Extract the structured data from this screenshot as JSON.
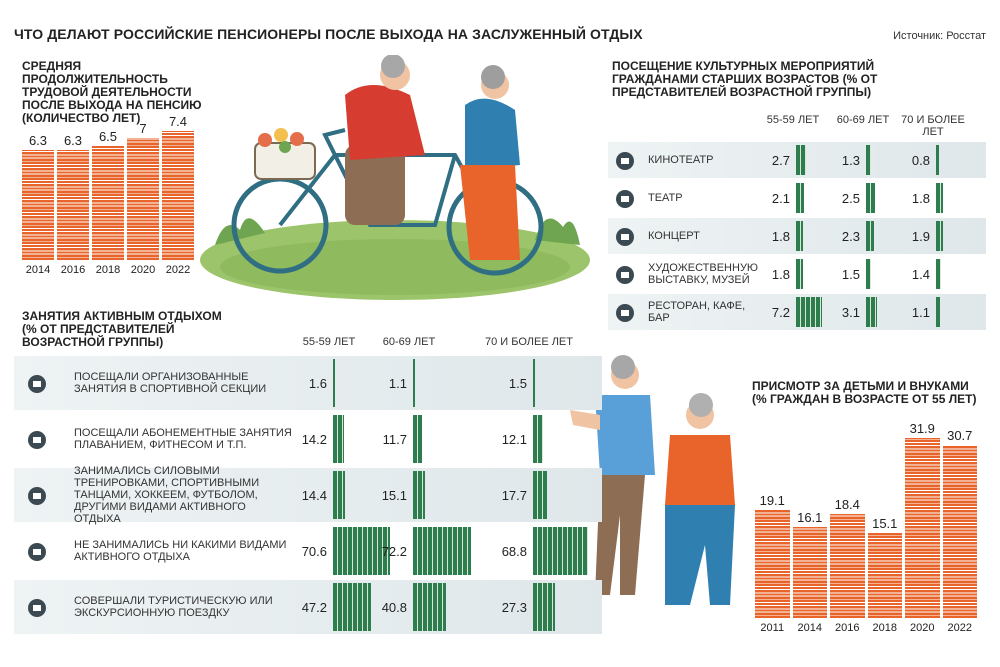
{
  "title": "ЧТО ДЕЛАЮТ РОССИЙСКИЕ ПЕНСИОНЕРЫ ПОСЛЕ ВЫХОДА НА ЗАСЛУЖЕННЫЙ ОТДЫХ",
  "source": "Источник: Росстат",
  "colors": {
    "orange": "#e8642a",
    "green": "#2e7d4f",
    "band": "#e4ecee"
  },
  "chart_data": [
    {
      "type": "bar",
      "title": "СРЕДНЯЯ ПРОДОЛЖИТЕЛЬНОСТЬ ТРУДОВОЙ ДЕЯТЕЛЬНОСТИ ПОСЛЕ ВЫХОДА НА ПЕНСИЮ (КОЛИЧЕСТВО ЛЕТ)",
      "categories": [
        "2014",
        "2016",
        "2018",
        "2020",
        "2022"
      ],
      "values": [
        6.3,
        6.3,
        6.5,
        7,
        7.4
      ],
      "value_labels": [
        "6.3",
        "6.3",
        "6.5",
        "7",
        "7.4"
      ]
    },
    {
      "type": "table",
      "title": "ПОСЕЩЕНИЕ КУЛЬТУРНЫХ МЕРОПРИЯТИЙ ГРАЖДАНАМИ СТАРШИХ ВОЗРАСТОВ (% ОТ ПРЕДСТАВИТЕЛЕЙ ВОЗРАСТНОЙ ГРУППЫ)",
      "columns": [
        "55-59 ЛЕТ",
        "60-69 ЛЕТ",
        "70 И БОЛЕЕ ЛЕТ"
      ],
      "rows": [
        {
          "label": "КИНОТЕАТР",
          "icon": "camera-icon",
          "values": [
            2.7,
            1.3,
            0.8
          ],
          "labels": [
            "2.7",
            "1.3",
            "0.8"
          ]
        },
        {
          "label": "ТЕАТР",
          "icon": "theatre-masks-icon",
          "values": [
            2.1,
            2.5,
            1.8
          ],
          "labels": [
            "2.1",
            "2.5",
            "1.8"
          ]
        },
        {
          "label": "КОНЦЕРТ",
          "icon": "microphone-icon",
          "values": [
            1.8,
            2.3,
            1.9
          ],
          "labels": [
            "1.8",
            "2.3",
            "1.9"
          ]
        },
        {
          "label": "ХУДОЖЕСТВЕННУЮ ВЫСТАВКУ, МУЗЕЙ",
          "icon": "museum-icon",
          "values": [
            1.8,
            1.5,
            1.4
          ],
          "labels": [
            "1.8",
            "1.5",
            "1.4"
          ]
        },
        {
          "label": "РЕСТОРАН, КАФЕ, БАР",
          "icon": "coffee-cup-icon",
          "values": [
            7.2,
            3.1,
            1.1
          ],
          "labels": [
            "7.2",
            "3.1",
            "1.1"
          ]
        }
      ]
    },
    {
      "type": "table",
      "title": "ЗАНЯТИЯ АКТИВНЫМ ОТДЫХОМ (% ОТ ПРЕДСТАВИТЕЛЕЙ ВОЗРАСТНОЙ ГРУППЫ)",
      "columns": [
        "55-59 ЛЕТ",
        "60-69 ЛЕТ",
        "70 И БОЛЕЕ ЛЕТ"
      ],
      "rows": [
        {
          "label": "ПОСЕЩАЛИ ОРГАНИЗОВАННЫЕ ЗАНЯТИЯ В СПОРТИВНОЙ СЕКЦИИ",
          "icon": "sport-section-icon",
          "values": [
            1.6,
            1.1,
            1.5
          ],
          "labels": [
            "1.6",
            "1.1",
            "1.5"
          ]
        },
        {
          "label": "ПОСЕЩАЛИ АБОНЕМЕНТНЫЕ ЗАНЯТИЯ ПЛАВАНИЕМ, ФИТНЕСОМ И Т.П.",
          "icon": "exercise-bike-icon",
          "values": [
            14.2,
            11.7,
            12.1
          ],
          "labels": [
            "14.2",
            "11.7",
            "12.1"
          ]
        },
        {
          "label": "ЗАНИМАЛИСЬ СИЛОВЫМИ ТРЕНИРОВКАМИ, СПОРТИВНЫМИ ТАНЦАМИ, ХОККЕЕМ, ФУТБОЛОМ, ДРУГИМИ ВИДАМИ АКТИВНОГО ОТДЫХА",
          "icon": "football-player-icon",
          "values": [
            14.4,
            15.1,
            17.7
          ],
          "labels": [
            "14.4",
            "15.1",
            "17.7"
          ]
        },
        {
          "label": "НЕ ЗАНИМАЛИСЬ НИ КАКИМИ ВИДАМИ АКТИВНОГО ОТДЫХА",
          "icon": "armchair-icon",
          "values": [
            70.6,
            72.2,
            68.8
          ],
          "labels": [
            "70.6",
            "72.2",
            "68.8"
          ]
        },
        {
          "label": "СОВЕРШАЛИ ТУРИСТИЧЕСКУЮ ИЛИ ЭКСКУРСИОННУЮ ПОЕЗДКУ",
          "icon": "map-pin-camera-icon",
          "values": [
            47.2,
            40.8,
            27.3
          ],
          "labels": [
            "47.2",
            "40.8",
            "27.3"
          ]
        }
      ]
    },
    {
      "type": "bar",
      "title": "ПРИСМОТР ЗА ДЕТЬМИ И ВНУКАМИ (% ГРАЖДАН В ВОЗРАСТЕ ОТ 55 ЛЕТ)",
      "categories": [
        "2011",
        "2014",
        "2016",
        "2018",
        "2020",
        "2022"
      ],
      "values": [
        19.1,
        16.1,
        18.4,
        15.1,
        31.9,
        30.7
      ],
      "value_labels": [
        "19.1",
        "16.1",
        "18.4",
        "15.1",
        "31.9",
        "30.7"
      ]
    }
  ]
}
